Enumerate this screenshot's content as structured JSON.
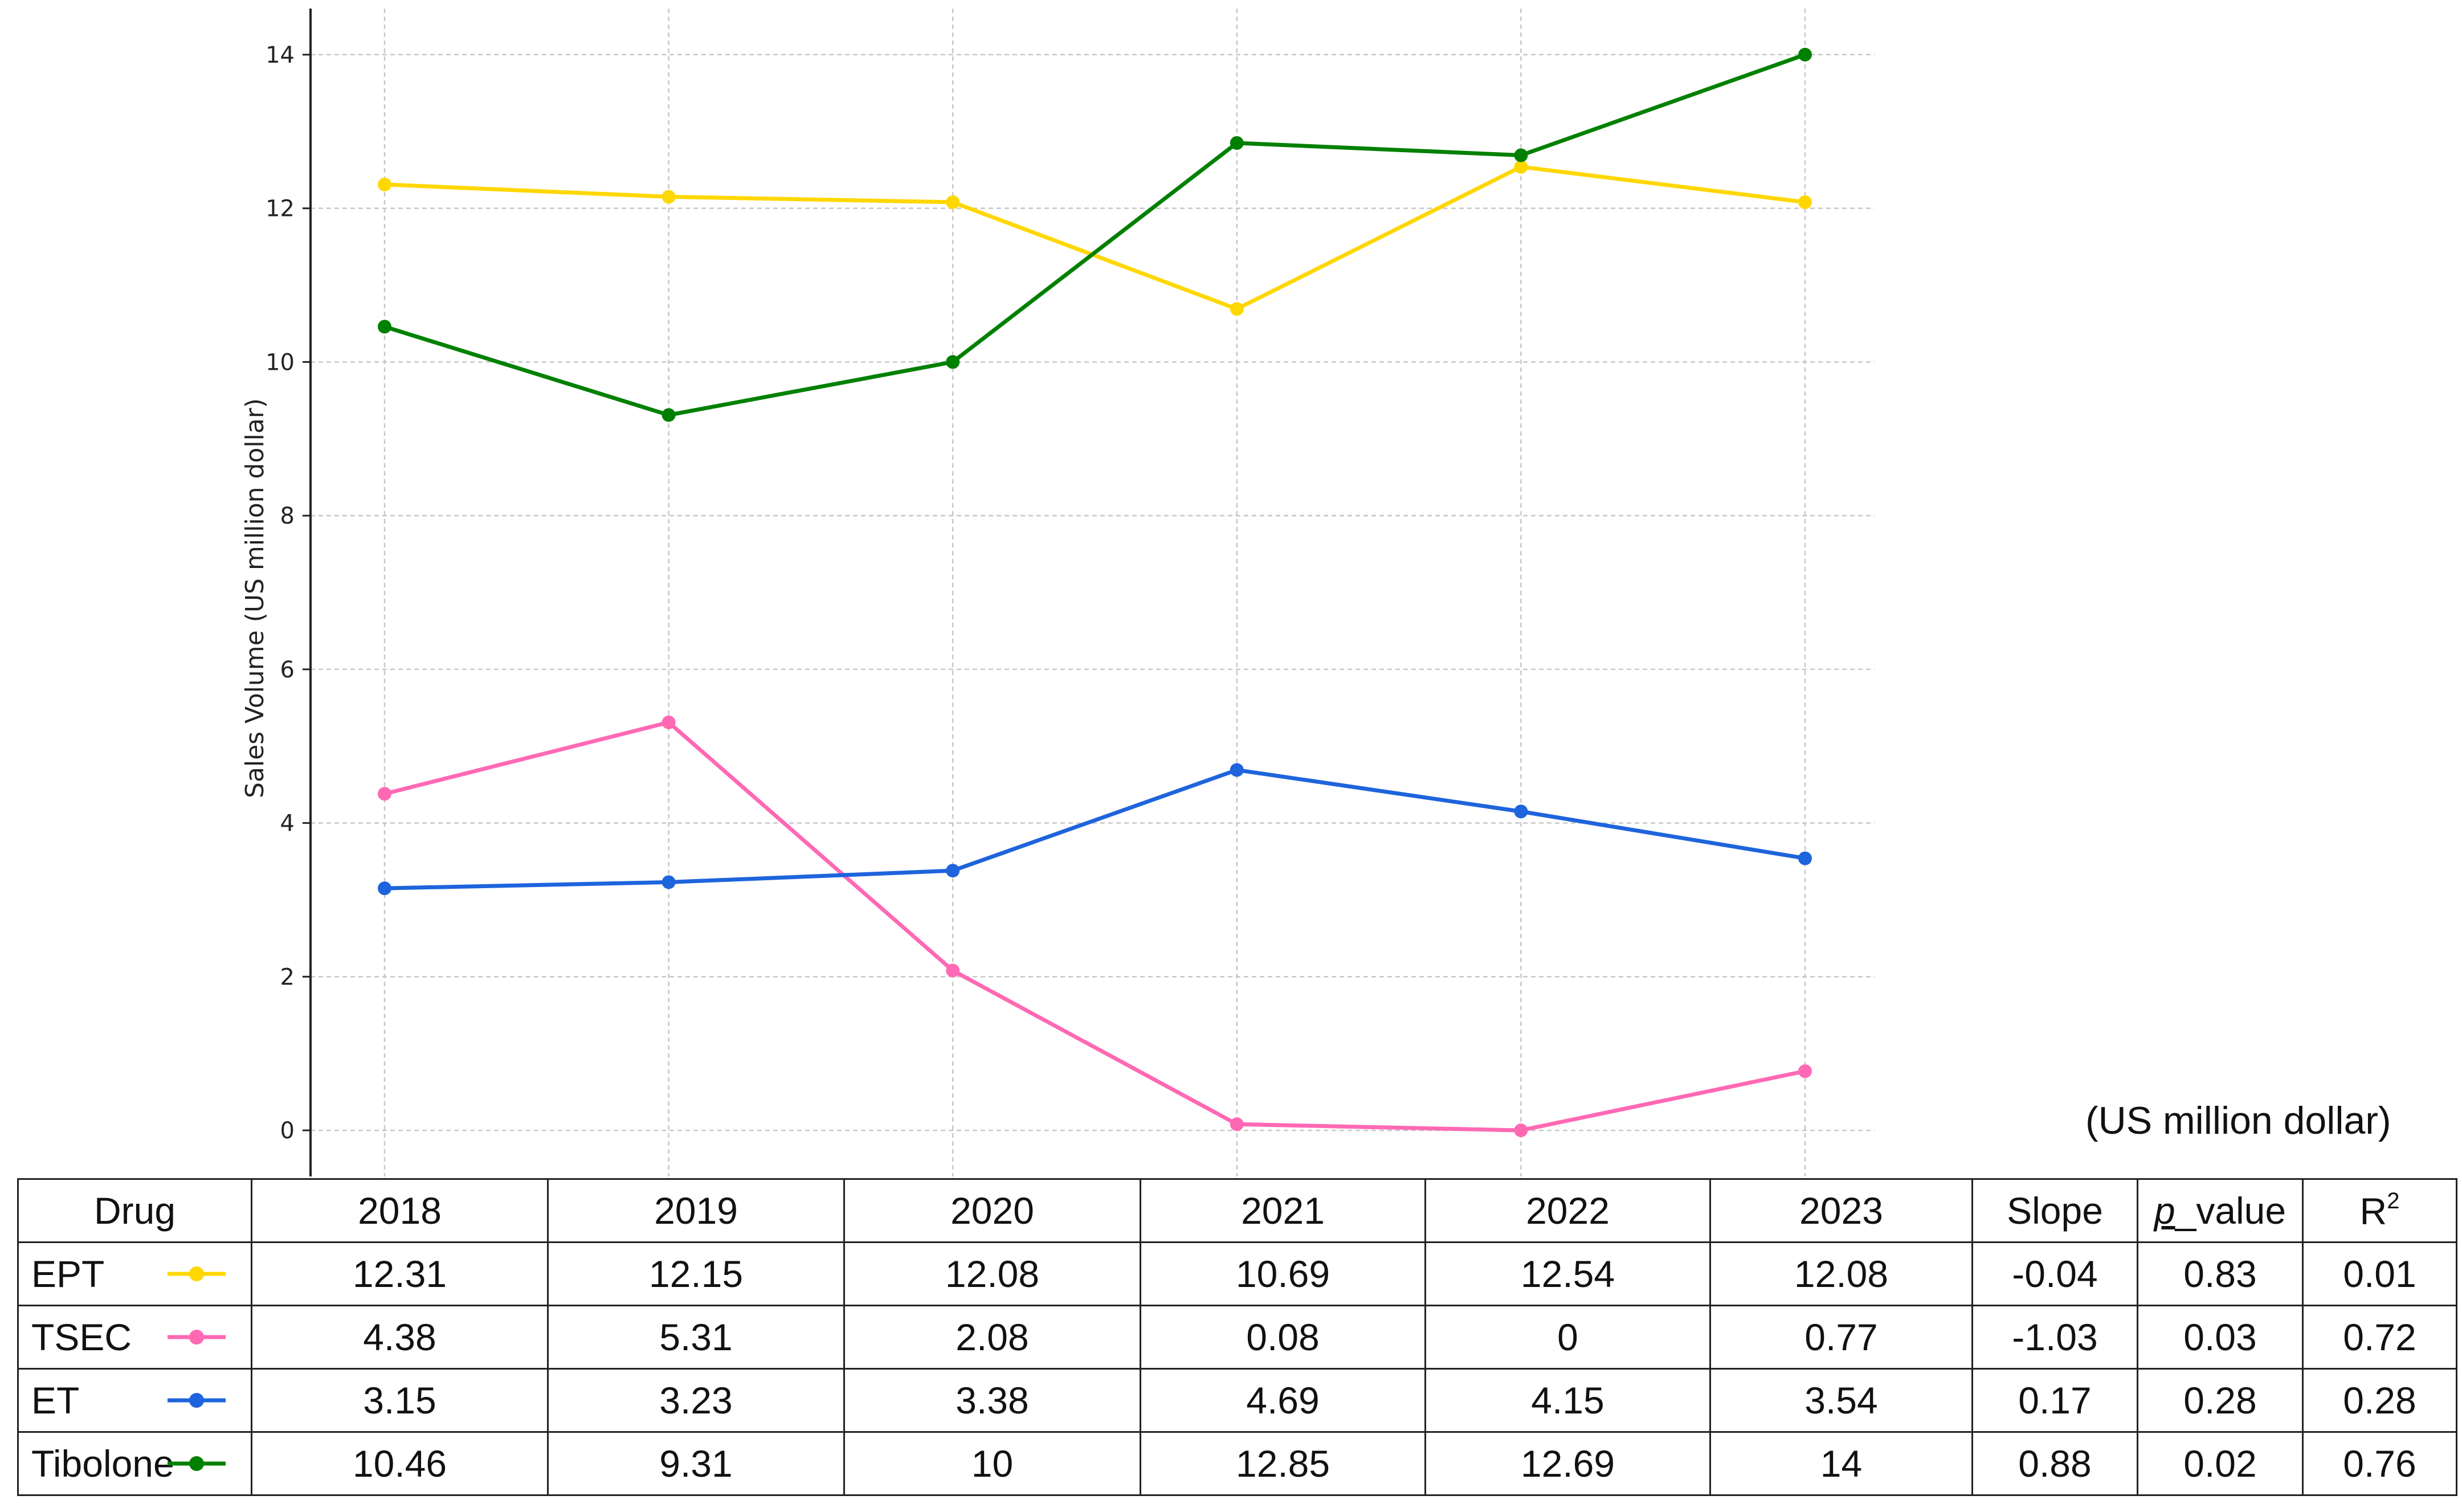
{
  "chart_data": {
    "type": "line",
    "ylabel": "Sales Volume (US million dollar)",
    "xlabel": "",
    "title": "",
    "x": [
      "2018",
      "2019",
      "2020",
      "2021",
      "2022",
      "2023"
    ],
    "ylim": [
      -0.6,
      14.6
    ],
    "yticks": [
      0,
      2,
      4,
      6,
      8,
      10,
      12,
      14
    ],
    "grid": true,
    "series": [
      {
        "name": "EPT",
        "color": "#FFD700",
        "values": [
          12.31,
          12.15,
          12.08,
          10.69,
          12.54,
          12.08
        ]
      },
      {
        "name": "TSEC",
        "color": "#FF69B4",
        "values": [
          4.38,
          5.31,
          2.08,
          0.08,
          0,
          0.77
        ]
      },
      {
        "name": "ET",
        "color": "#1E64DC",
        "values": [
          3.15,
          3.23,
          3.38,
          4.69,
          4.15,
          3.54
        ]
      },
      {
        "name": "Tibolone",
        "color": "#008000",
        "values": [
          10.46,
          9.31,
          10,
          12.85,
          12.69,
          14
        ]
      }
    ]
  },
  "unit_note": "(US million dollar)",
  "table": {
    "headers": {
      "drug": "Drug",
      "years": [
        "2018",
        "2019",
        "2020",
        "2021",
        "2022",
        "2023"
      ],
      "slope": "Slope",
      "pvalue_p": "p",
      "pvalue_rest": "_value",
      "r2_base": "R",
      "r2_sup": "2"
    },
    "rows": [
      {
        "drug": "EPT",
        "color": "#FFD700",
        "values": [
          "12.31",
          "12.15",
          "12.08",
          "10.69",
          "12.54",
          "12.08"
        ],
        "slope": "-0.04",
        "pvalue": "0.83",
        "r2": "0.01"
      },
      {
        "drug": "TSEC",
        "color": "#FF69B4",
        "values": [
          "4.38",
          "5.31",
          "2.08",
          "0.08",
          "0",
          "0.77"
        ],
        "slope": "-1.03",
        "pvalue": "0.03",
        "r2": "0.72"
      },
      {
        "drug": "ET",
        "color": "#1E64DC",
        "values": [
          "3.15",
          "3.23",
          "3.38",
          "4.69",
          "4.15",
          "3.54"
        ],
        "slope": "0.17",
        "pvalue": "0.28",
        "r2": "0.28"
      },
      {
        "drug": "Tibolone",
        "color": "#008000",
        "values": [
          "10.46",
          "9.31",
          "10",
          "12.85",
          "12.69",
          "14"
        ],
        "slope": "0.88",
        "pvalue": "0.02",
        "r2": "0.76"
      }
    ]
  }
}
